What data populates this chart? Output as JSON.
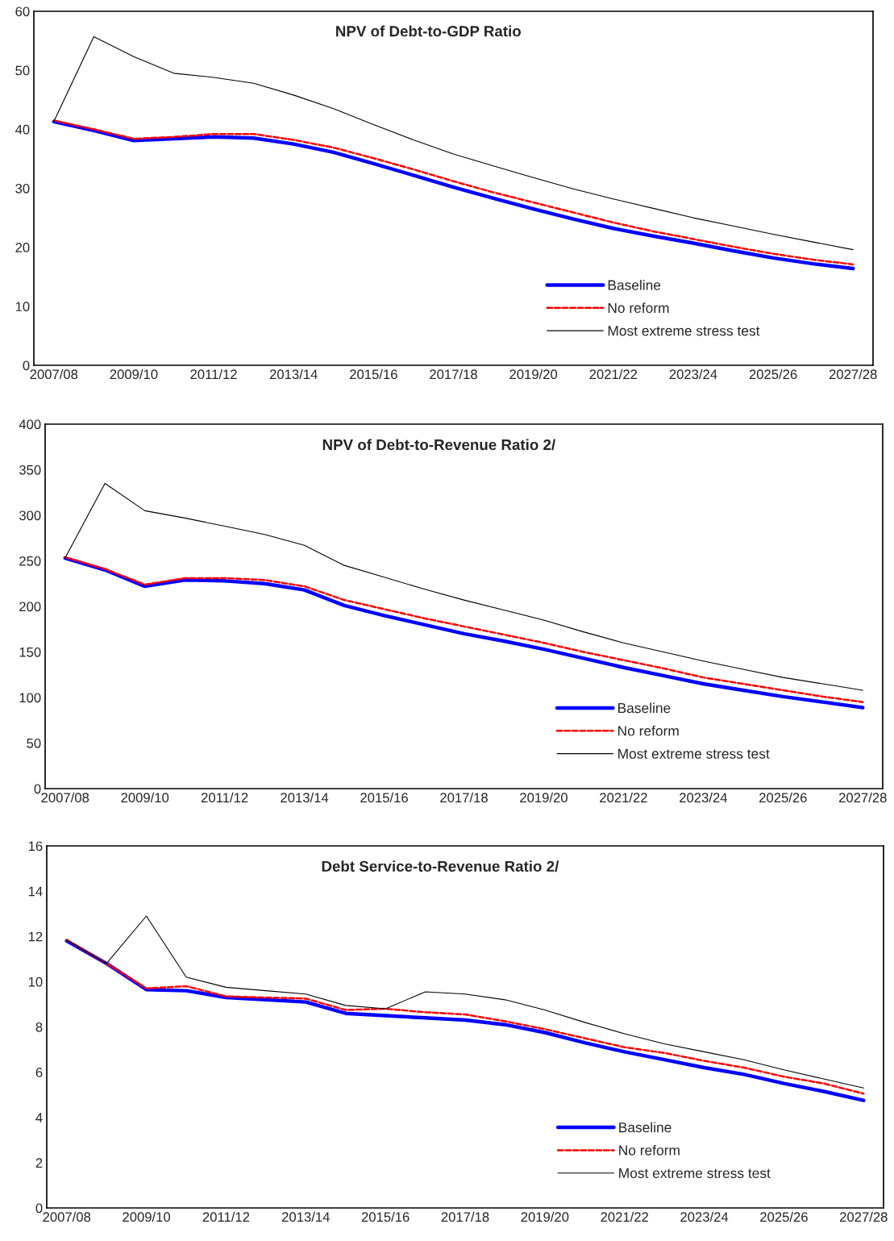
{
  "chart_data": [
    {
      "type": "line",
      "title": "NPV of Debt-to-GDP Ratio",
      "categories": [
        "2007/08",
        null,
        "2009/10",
        null,
        "2011/12",
        null,
        "2013/14",
        null,
        "2015/16",
        null,
        "2017/18",
        null,
        "2019/20",
        null,
        "2021/22",
        null,
        "2023/24",
        null,
        "2025/26",
        null,
        "2027/28"
      ],
      "ylim": [
        0,
        60
      ],
      "yticks": [
        0,
        10,
        20,
        30,
        40,
        50,
        60
      ],
      "grid": false,
      "legend": "bottom right",
      "series": [
        {
          "name": "Baseline",
          "color": "#0000ff",
          "line_style": "solid",
          "values": [
            41.3,
            39.8,
            38.1,
            38.4,
            38.7,
            38.5,
            37.5,
            36.1,
            34.2,
            32.2,
            30.2,
            28.3,
            26.5,
            24.8,
            23.2,
            21.9,
            20.7,
            19.4,
            18.2,
            17.2,
            16.4
          ]
        },
        {
          "name": "No reform",
          "color": "#ff0000",
          "line_style": "dashed",
          "values": [
            41.5,
            40.0,
            38.4,
            38.7,
            39.2,
            39.2,
            38.2,
            36.9,
            35.1,
            33.2,
            31.2,
            29.3,
            27.6,
            25.9,
            24.2,
            22.7,
            21.4,
            20.1,
            18.9,
            17.9,
            17.1
          ]
        },
        {
          "name": "Most extreme stress test",
          "color": "#000000",
          "line_style": "solid",
          "values": [
            41.3,
            55.7,
            52.3,
            49.5,
            48.8,
            47.8,
            45.8,
            43.5,
            40.8,
            38.2,
            35.8,
            33.8,
            31.8,
            29.9,
            28.2,
            26.6,
            25.0,
            23.6,
            22.2,
            20.9,
            19.6
          ]
        }
      ]
    },
    {
      "type": "line",
      "title": "NPV of Debt-to-Revenue Ratio 2/",
      "categories": [
        "2007/08",
        null,
        "2009/10",
        null,
        "2011/12",
        null,
        "2013/14",
        null,
        "2015/16",
        null,
        "2017/18",
        null,
        "2019/20",
        null,
        "2021/22",
        null,
        "2023/24",
        null,
        "2025/26",
        null,
        "2027/28"
      ],
      "ylim": [
        0,
        400
      ],
      "yticks": [
        0,
        50,
        100,
        150,
        200,
        250,
        300,
        350,
        400
      ],
      "grid": false,
      "legend": "bottom right",
      "series": [
        {
          "name": "Baseline",
          "color": "#0000ff",
          "line_style": "solid",
          "values": [
            253,
            240,
            222,
            229,
            228,
            225,
            218,
            201,
            190,
            180,
            170,
            162,
            153,
            143,
            133,
            124,
            115,
            108,
            101,
            95,
            89
          ]
        },
        {
          "name": "No reform",
          "color": "#ff0000",
          "line_style": "dashed",
          "values": [
            254,
            241,
            224,
            231,
            231,
            229,
            222,
            207,
            197,
            187,
            178,
            169,
            160,
            150,
            141,
            132,
            122,
            115,
            108,
            101,
            95
          ]
        },
        {
          "name": "Most extreme stress test",
          "color": "#000000",
          "line_style": "solid",
          "values": [
            253,
            335,
            305,
            297,
            288,
            279,
            267,
            245,
            232,
            219,
            207,
            196,
            185,
            172,
            160,
            150,
            140,
            131,
            122,
            115,
            108
          ]
        }
      ]
    },
    {
      "type": "line",
      "title": "Debt Service-to-Revenue Ratio 2/",
      "categories": [
        "2007/08",
        null,
        "2009/10",
        null,
        "2011/12",
        null,
        "2013/14",
        null,
        "2015/16",
        null,
        "2017/18",
        null,
        "2019/20",
        null,
        "2021/22",
        null,
        "2023/24",
        null,
        "2025/26",
        null,
        "2027/28"
      ],
      "ylim": [
        0,
        16
      ],
      "yticks": [
        0,
        2,
        4,
        6,
        8,
        10,
        12,
        14,
        16
      ],
      "grid": false,
      "legend": "bottom right",
      "series": [
        {
          "name": "Baseline",
          "color": "#0000ff",
          "line_style": "solid",
          "values": [
            11.8,
            10.8,
            9.65,
            9.6,
            9.3,
            9.2,
            9.1,
            8.6,
            8.5,
            8.4,
            8.3,
            8.1,
            7.75,
            7.3,
            6.9,
            6.55,
            6.2,
            5.9,
            5.5,
            5.15,
            4.75
          ]
        },
        {
          "name": "No reform",
          "color": "#ff0000",
          "line_style": "dashed",
          "values": [
            11.85,
            10.8,
            9.7,
            9.8,
            9.35,
            9.3,
            9.25,
            8.75,
            8.8,
            8.65,
            8.55,
            8.25,
            7.9,
            7.5,
            7.1,
            6.85,
            6.5,
            6.2,
            5.8,
            5.5,
            5.05
          ]
        },
        {
          "name": "Most extreme stress test",
          "color": "#000000",
          "line_style": "solid",
          "values": [
            11.85,
            10.8,
            12.9,
            10.2,
            9.75,
            9.6,
            9.45,
            8.95,
            8.8,
            9.55,
            9.45,
            9.2,
            8.75,
            8.2,
            7.7,
            7.25,
            6.9,
            6.55,
            6.1,
            5.7,
            5.3
          ]
        }
      ]
    }
  ]
}
